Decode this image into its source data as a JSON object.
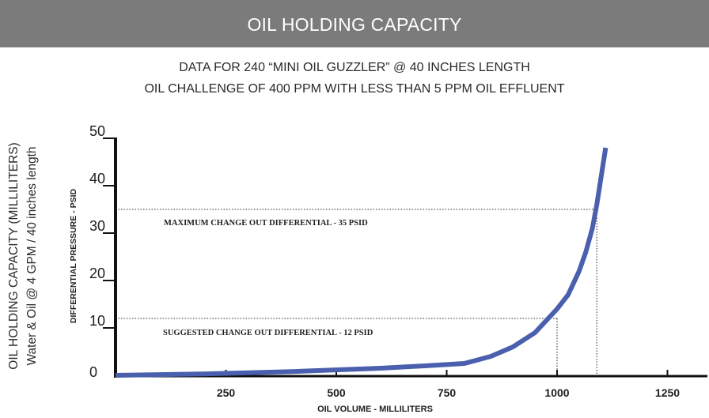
{
  "header": {
    "title": "OIL HOLDING CAPACITY"
  },
  "subtitle": {
    "line1": "DATA FOR 240 “MINI OIL GUZZLER” @ 40 INCHES LENGTH",
    "line2": "OIL CHALLENGE OF 400 PPM WITH LESS THAN 5 PPM OIL EFFLUENT"
  },
  "colors": {
    "banner": "#7b7b7b",
    "curve": "#4a5fae",
    "axis": "#111111"
  },
  "chart_data": {
    "type": "line",
    "ylabel_outer_line1": "OIL HOLDING CAPACITY (MILLILITERS)",
    "ylabel_outer_line2": "Water & Oil @ 4 GPM / 40 inches length",
    "ylabel": "DIFFERENTIAL PRESSURE - PSID",
    "xlabel": "OIL VOLUME - MILLILITERS",
    "xlim": [
      0,
      1300
    ],
    "ylim": [
      0,
      50
    ],
    "x_tick_labels": [
      "250",
      "500",
      "750",
      "1000",
      "1250"
    ],
    "y_tick_labels": [
      "0",
      "10",
      "20",
      "30",
      "40",
      "50"
    ],
    "grid": false,
    "series": [
      {
        "x": [
          0,
          200,
          400,
          600,
          700,
          790,
          850,
          900,
          950,
          1000,
          1025,
          1050,
          1065,
          1080,
          1090,
          1100,
          1110
        ],
        "y": [
          0,
          0.3,
          0.8,
          1.5,
          2,
          2.5,
          4,
          6,
          9,
          14,
          17,
          22,
          26,
          31,
          36,
          42,
          48
        ]
      }
    ],
    "annotations": [
      {
        "label": "MAXIMUM CHANGE OUT DIFFERENTIAL - 35 PSID",
        "y": 35,
        "x": 1090
      },
      {
        "label": "SUGGESTED CHANGE OUT DIFFERENTIAL - 12 PSID",
        "y": 12,
        "x": 1000
      }
    ]
  }
}
